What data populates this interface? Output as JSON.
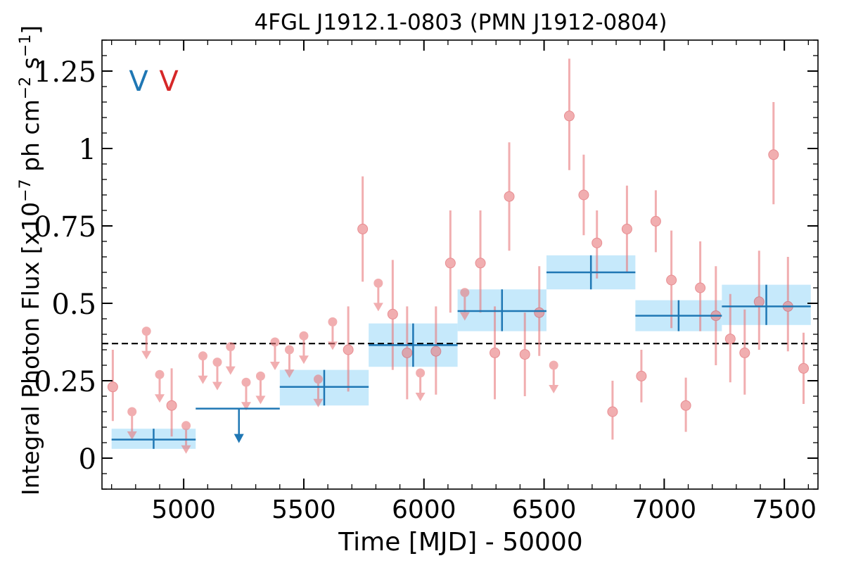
{
  "chart_data": {
    "type": "scatter",
    "title": "4FGL J1912.1-0803 (PMN J1912-0804)",
    "xlabel": "Time [MJD] - 50000",
    "ylabel": "Integral Photon Flux [x10$^{-7}$ ph cm$^{-2}$ s$^{-1}$]",
    "ylabel_text": {
      "prefix": "Integral Photon Flux [x10",
      "exp1": "−7",
      "mid": " ph cm",
      "exp2": "−2",
      "mid2": " s",
      "exp3": "−1",
      "suffix": "]"
    },
    "xlim": [
      4660,
      7640
    ],
    "ylim": [
      -0.1,
      1.35
    ],
    "xticks": [
      5000,
      5500,
      6000,
      6500,
      7000,
      7500
    ],
    "yticks": [
      0,
      0.25,
      0.5,
      0.75,
      1,
      1.25
    ],
    "xtick_labels": [
      "5000",
      "5500",
      "6000",
      "6500",
      "7000",
      "7500"
    ],
    "ytick_labels": [
      "0",
      "0.25",
      "0.5",
      "0.75",
      "1",
      "1.25"
    ],
    "grid": false,
    "legend_markers": [
      "V",
      "V"
    ],
    "colors": {
      "short_series": "#e8797c",
      "long_series": "#1f77b4",
      "long_band": "#c6e9fb",
      "mean_line": "#000000"
    },
    "mean_flux": 0.37,
    "series": [
      {
        "kind": "long-bins",
        "points": [
          {
            "x": 4875,
            "x_lo": 4700,
            "x_hi": 5050,
            "y": 0.06,
            "y_lo": 0.03,
            "y_hi": 0.095,
            "upper_limit": false
          },
          {
            "x": 5230,
            "x_lo": 5050,
            "x_hi": 5400,
            "y": 0.16,
            "upper_limit": true
          },
          {
            "x": 5585,
            "x_lo": 5400,
            "x_hi": 5770,
            "y": 0.23,
            "y_lo": 0.17,
            "y_hi": 0.285,
            "upper_limit": false
          },
          {
            "x": 5955,
            "x_lo": 5770,
            "x_hi": 6140,
            "y": 0.365,
            "y_lo": 0.295,
            "y_hi": 0.435,
            "upper_limit": false
          },
          {
            "x": 6325,
            "x_lo": 6140,
            "x_hi": 6510,
            "y": 0.475,
            "y_lo": 0.41,
            "y_hi": 0.545,
            "upper_limit": false
          },
          {
            "x": 6695,
            "x_lo": 6510,
            "x_hi": 6880,
            "y": 0.6,
            "y_lo": 0.545,
            "y_hi": 0.655,
            "upper_limit": false
          },
          {
            "x": 7060,
            "x_lo": 6880,
            "x_hi": 7240,
            "y": 0.46,
            "y_lo": 0.41,
            "y_hi": 0.51,
            "upper_limit": false
          },
          {
            "x": 7425,
            "x_lo": 7240,
            "x_hi": 7610,
            "y": 0.49,
            "y_lo": 0.43,
            "y_hi": 0.56,
            "upper_limit": false
          }
        ]
      },
      {
        "kind": "short-bins",
        "points": [
          {
            "x": 4705,
            "y": 0.23,
            "y_lo": 0.12,
            "y_hi": 0.35,
            "upper_limit": false
          },
          {
            "x": 4785,
            "y": 0.15,
            "upper_limit": true
          },
          {
            "x": 4845,
            "y": 0.41,
            "upper_limit": true
          },
          {
            "x": 4900,
            "y": 0.27,
            "upper_limit": true
          },
          {
            "x": 4950,
            "y": 0.17,
            "y_lo": 0.07,
            "y_hi": 0.29,
            "upper_limit": false
          },
          {
            "x": 5010,
            "y": 0.105,
            "upper_limit": true
          },
          {
            "x": 5080,
            "y": 0.33,
            "upper_limit": true
          },
          {
            "x": 5140,
            "y": 0.31,
            "upper_limit": true
          },
          {
            "x": 5195,
            "y": 0.36,
            "upper_limit": true
          },
          {
            "x": 5260,
            "y": 0.245,
            "upper_limit": true
          },
          {
            "x": 5320,
            "y": 0.265,
            "upper_limit": true
          },
          {
            "x": 5380,
            "y": 0.375,
            "upper_limit": true
          },
          {
            "x": 5440,
            "y": 0.35,
            "upper_limit": true
          },
          {
            "x": 5500,
            "y": 0.395,
            "upper_limit": true
          },
          {
            "x": 5560,
            "y": 0.255,
            "upper_limit": true
          },
          {
            "x": 5620,
            "y": 0.44,
            "upper_limit": true
          },
          {
            "x": 5685,
            "y": 0.35,
            "y_lo": 0.215,
            "y_hi": 0.49,
            "upper_limit": false
          },
          {
            "x": 5745,
            "y": 0.74,
            "y_lo": 0.57,
            "y_hi": 0.91,
            "upper_limit": false
          },
          {
            "x": 5810,
            "y": 0.565,
            "upper_limit": true
          },
          {
            "x": 5870,
            "y": 0.465,
            "y_lo": 0.285,
            "y_hi": 0.64,
            "upper_limit": false
          },
          {
            "x": 5930,
            "y": 0.34,
            "y_lo": 0.19,
            "y_hi": 0.49,
            "upper_limit": false
          },
          {
            "x": 5985,
            "y": 0.275,
            "upper_limit": true
          },
          {
            "x": 6050,
            "y": 0.345,
            "y_lo": 0.205,
            "y_hi": 0.49,
            "upper_limit": false
          },
          {
            "x": 6110,
            "y": 0.63,
            "y_lo": 0.47,
            "y_hi": 0.8,
            "upper_limit": false
          },
          {
            "x": 6170,
            "y": 0.535,
            "upper_limit": true
          },
          {
            "x": 6235,
            "y": 0.63,
            "y_lo": 0.47,
            "y_hi": 0.8,
            "upper_limit": false
          },
          {
            "x": 6295,
            "y": 0.34,
            "y_lo": 0.19,
            "y_hi": 0.49,
            "upper_limit": false
          },
          {
            "x": 6355,
            "y": 0.845,
            "y_lo": 0.67,
            "y_hi": 1.02,
            "upper_limit": false
          },
          {
            "x": 6420,
            "y": 0.335,
            "y_lo": 0.2,
            "y_hi": 0.47,
            "upper_limit": false
          },
          {
            "x": 6480,
            "y": 0.47,
            "y_lo": 0.33,
            "y_hi": 0.62,
            "upper_limit": false
          },
          {
            "x": 6540,
            "y": 0.3,
            "upper_limit": true
          },
          {
            "x": 6605,
            "y": 1.105,
            "y_lo": 0.93,
            "y_hi": 1.29,
            "upper_limit": false
          },
          {
            "x": 6665,
            "y": 0.85,
            "y_lo": 0.72,
            "y_hi": 0.98,
            "upper_limit": false
          },
          {
            "x": 6720,
            "y": 0.695,
            "y_lo": 0.58,
            "y_hi": 0.8,
            "upper_limit": false
          },
          {
            "x": 6785,
            "y": 0.15,
            "y_lo": 0.06,
            "y_hi": 0.25,
            "upper_limit": false
          },
          {
            "x": 6845,
            "y": 0.74,
            "y_lo": 0.6,
            "y_hi": 0.88,
            "upper_limit": false
          },
          {
            "x": 6905,
            "y": 0.265,
            "y_lo": 0.18,
            "y_hi": 0.35,
            "upper_limit": false
          },
          {
            "x": 6965,
            "y": 0.765,
            "y_lo": 0.665,
            "y_hi": 0.865,
            "upper_limit": false
          },
          {
            "x": 7030,
            "y": 0.575,
            "y_lo": 0.42,
            "y_hi": 0.735,
            "upper_limit": false
          },
          {
            "x": 7090,
            "y": 0.17,
            "y_lo": 0.085,
            "y_hi": 0.26,
            "upper_limit": false
          },
          {
            "x": 7150,
            "y": 0.55,
            "y_lo": 0.41,
            "y_hi": 0.7,
            "upper_limit": false
          },
          {
            "x": 7215,
            "y": 0.46,
            "y_lo": 0.3,
            "y_hi": 0.62,
            "upper_limit": false
          },
          {
            "x": 7275,
            "y": 0.385,
            "y_lo": 0.245,
            "y_hi": 0.53,
            "upper_limit": false
          },
          {
            "x": 7335,
            "y": 0.34,
            "y_lo": 0.205,
            "y_hi": 0.48,
            "upper_limit": false
          },
          {
            "x": 7395,
            "y": 0.505,
            "y_lo": 0.35,
            "y_hi": 0.67,
            "upper_limit": false
          },
          {
            "x": 7455,
            "y": 0.98,
            "y_lo": 0.82,
            "y_hi": 1.15,
            "upper_limit": false
          },
          {
            "x": 7515,
            "y": 0.49,
            "y_lo": 0.345,
            "y_hi": 0.65,
            "upper_limit": false
          },
          {
            "x": 7580,
            "y": 0.29,
            "y_lo": 0.175,
            "y_hi": 0.405,
            "upper_limit": false
          }
        ]
      }
    ]
  }
}
